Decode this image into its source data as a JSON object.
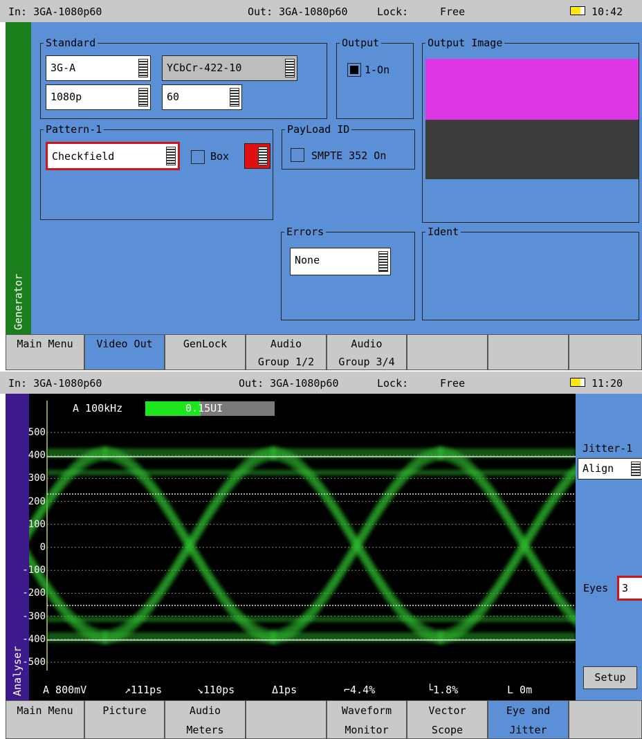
{
  "top_screen": {
    "status": {
      "input": "In: 3GA-1080p60",
      "output": "Out: 3GA-1080p60",
      "lock": "Lock:",
      "lock_state": "Free",
      "time": "10:42"
    },
    "sidebar": "Generator",
    "standard": {
      "title": "Standard",
      "interface": "3G-A",
      "format": "YCbCr-422-10",
      "scan": "1080p",
      "rate": "60"
    },
    "output": {
      "title": "Output",
      "checkbox": "1-On"
    },
    "output_image": {
      "title": "Output Image"
    },
    "pattern": {
      "title": "Pattern-1",
      "pattern": "Checkfield",
      "checkbox": "Box"
    },
    "payload": {
      "title": "PayLoad ID",
      "checkbox": "SMPTE 352 On"
    },
    "errors": {
      "title": "Errors",
      "value": "None"
    },
    "ident": {
      "title": "Ident"
    },
    "tabs": [
      [
        "Main Menu"
      ],
      [
        "Video Out"
      ],
      [
        "GenLock"
      ],
      [
        "Audio",
        "Group 1/2"
      ],
      [
        "Audio",
        "Group 3/4"
      ]
    ]
  },
  "bottom_screen": {
    "status": {
      "input": "In: 3GA-1080p60",
      "output": "Out: 3GA-1080p60",
      "lock": "Lock:",
      "lock_state": "Free",
      "time": "11:20"
    },
    "sidebar": "Analyser",
    "filter": "A 100kHz",
    "jitter": "0.15UI",
    "yticks": [
      500,
      400,
      300,
      200,
      100,
      0,
      -100,
      -200,
      -300,
      -400,
      -500
    ],
    "readouts": [
      "A 800mV",
      "↗111ps",
      "↘110ps",
      "Δ1ps",
      "⌐4.4%",
      "└1.8%",
      "L 0m"
    ],
    "side": {
      "jitter_title": "Jitter-1",
      "mode": "Align",
      "eyes_label": "Eyes",
      "eyes": "3",
      "setup": "Setup"
    },
    "tabs": [
      [
        "Main Menu"
      ],
      [
        "Picture"
      ],
      [
        "Audio",
        "Meters"
      ],
      [],
      [
        "Waveform",
        "Monitor"
      ],
      [
        "Vector",
        "Scope"
      ],
      [
        "Eye and",
        "Jitter"
      ]
    ]
  }
}
